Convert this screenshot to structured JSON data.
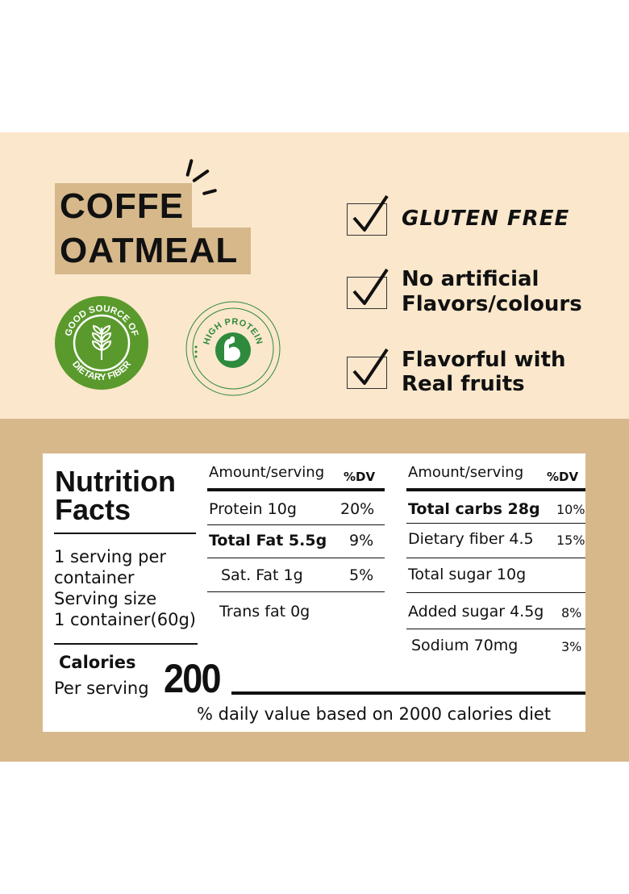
{
  "product": {
    "title_line1": "COFFE",
    "title_line2": "OATMEAL"
  },
  "badges": {
    "fiber": {
      "text_top": "GOOD SOURCE OF",
      "text_bottom": "DIETARY FIBER",
      "icon": "wheat-icon",
      "color": "#5a9a2c"
    },
    "protein": {
      "text": "HIGH PROTEIN",
      "icon": "flexed-arm-icon",
      "color": "#2e8a3c"
    }
  },
  "claims": [
    {
      "line1": "GLUTEN FREE",
      "line2": ""
    },
    {
      "line1": "No artificial",
      "line2": "Flavors/colours"
    },
    {
      "line1": "Flavorful with",
      "line2": "Real fruits"
    }
  ],
  "nutrition": {
    "title_line1": "Nutrition",
    "title_line2": "Facts",
    "servings_line1": "1 serving per",
    "servings_line2": "container",
    "serving_size_line1": "Serving size",
    "serving_size_line2": "1 container(60g)",
    "calories_label": "Calories",
    "per_serving_label": "Per serving",
    "calories_value": "200",
    "footnote": "% daily value based on 2000 calories diet",
    "col1": {
      "header_amount": "Amount/serving",
      "header_dv": "%DV",
      "rows": [
        {
          "label": "Protein 10g",
          "dv": "20%"
        },
        {
          "label": "Total Fat 5.5g",
          "dv": "9%"
        },
        {
          "label": "Sat. Fat 1g",
          "dv": "5%"
        },
        {
          "label": "Trans fat 0g",
          "dv": ""
        }
      ]
    },
    "col2": {
      "header_amount": "Amount/serving",
      "header_dv": "%DV",
      "rows": [
        {
          "label": "Total carbs  28g",
          "dv": "10%"
        },
        {
          "label": "Dietary fiber 4.5",
          "dv": "15%"
        },
        {
          "label": "Total sugar 10g",
          "dv": ""
        },
        {
          "label": "Added sugar 4.5g",
          "dv": "8%"
        },
        {
          "label": "Sodium 70mg",
          "dv": "3%"
        }
      ]
    }
  },
  "colors": {
    "top_background": "#fbe7cc",
    "bottom_background": "#d6b88b",
    "title_highlight": "#d6b88b"
  }
}
